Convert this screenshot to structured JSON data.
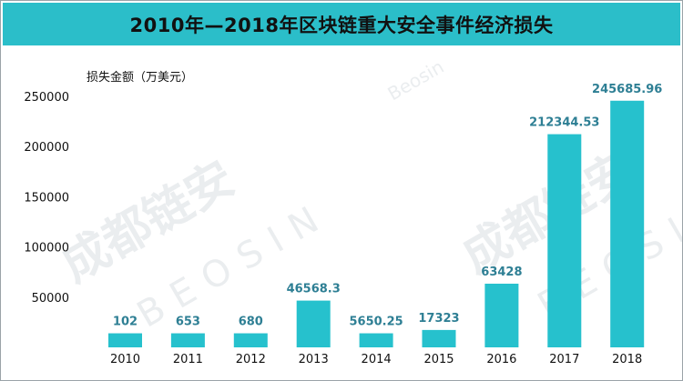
{
  "chart_data": {
    "type": "bar",
    "title": "2010年—2018年区块链重大安全事件经济损失",
    "ylabel": "损失金额（万美元）",
    "xlabel": "",
    "categories": [
      "2010",
      "2011",
      "2012",
      "2013",
      "2014",
      "2015",
      "2016",
      "2017",
      "2018"
    ],
    "values": [
      102,
      653,
      680,
      46568.3,
      5650.25,
      17323,
      63428,
      212344.53,
      245685.96
    ],
    "value_labels": [
      "102",
      "653",
      "680",
      "46568.3",
      "5650.25",
      "17323",
      "63428",
      "212344.53",
      "245685.96"
    ],
    "yticks": [
      "50000",
      "100000",
      "150000",
      "200000",
      "250000"
    ],
    "ylim": [
      0,
      250000
    ],
    "grid": false,
    "bar_color": "#26c1cd",
    "label_color": "#2e7f94"
  },
  "watermark": {
    "text_cn": "成都链安",
    "text_en": "BEOSIN",
    "brand": "Beosin"
  }
}
